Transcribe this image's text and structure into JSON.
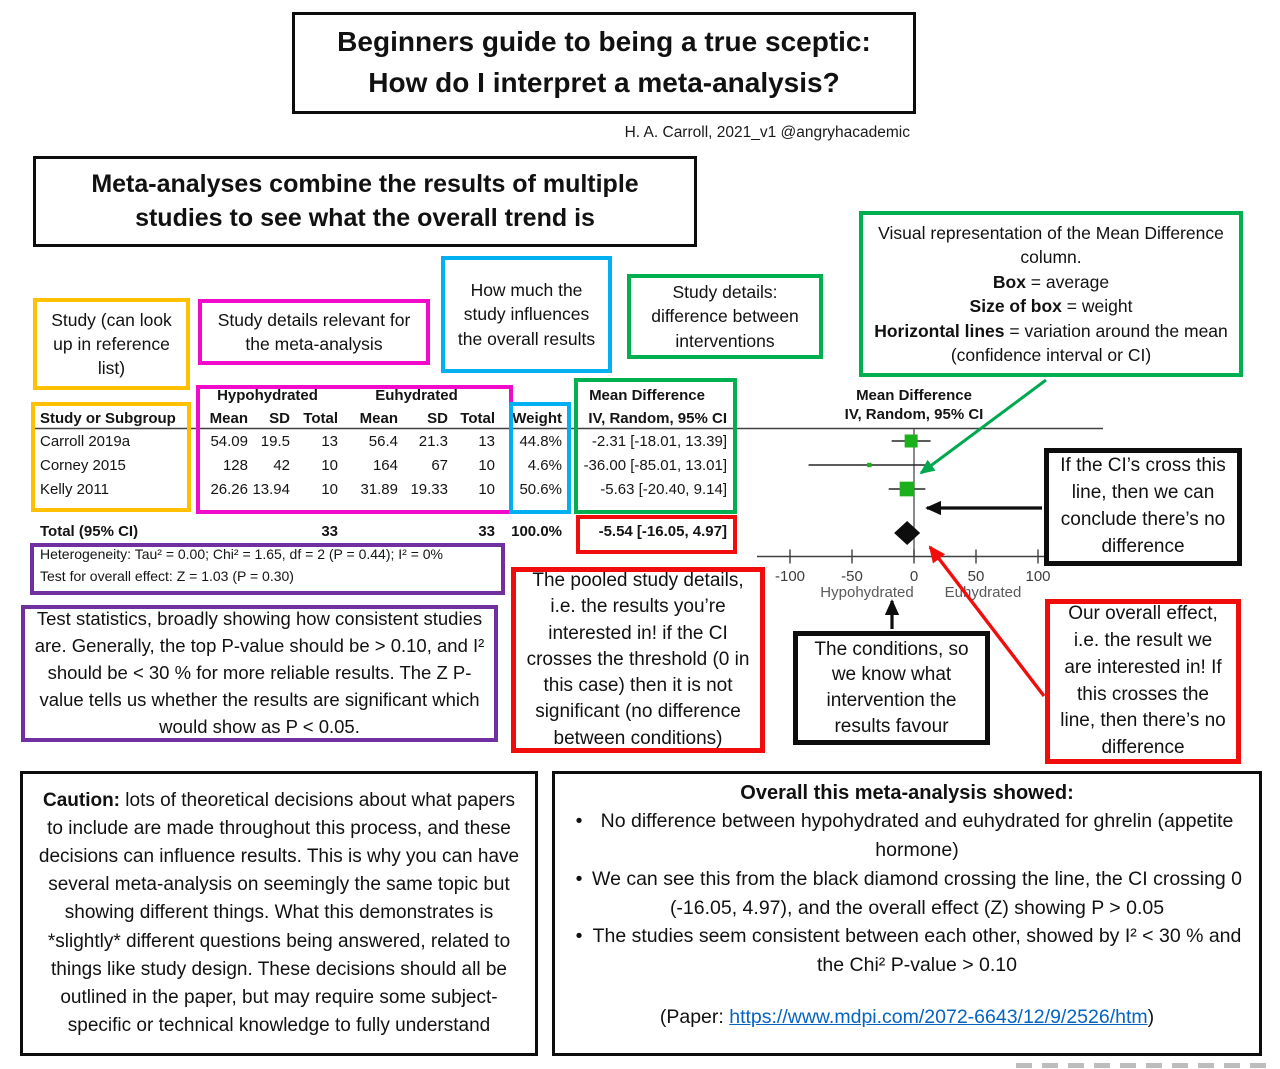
{
  "header": {
    "title_line1": "Beginners guide to being a true sceptic:",
    "title_line2": "How do I interpret a meta-analysis?",
    "attribution": "H. A. Carroll, 2021_v1  @angryhacademic",
    "intro": "Meta-analyses combine the results of multiple studies to see what the overall trend is"
  },
  "callouts": {
    "study": "Study (can look up in reference list)",
    "study_details": "Study details relevant for the meta-analysis",
    "weight": "How much the study influences the overall results",
    "mean_difference": "Study details: difference between interventions",
    "visual": {
      "line1": "Visual representation of the Mean Difference column.",
      "box_label": "Box",
      "box_value": " = average",
      "size_label": "Size of box",
      "size_value": " = weight",
      "lines_label": "Horizontal lines",
      "lines_value": " = variation around the mean (confidence interval or CI)"
    },
    "test_stats": "Test statistics, broadly showing how consistent studies are. Generally, the top P-value should be > 0.10, and I² should be < 30 % for more reliable results. The Z P-value tells us whether the results are significant which would show as P < 0.05.",
    "pooled": "The pooled study details, i.e. the results you’re interested in! if the CI crosses the threshold (0 in this case) then it is not significant (no difference between conditions)",
    "conditions": "The conditions, so we know what intervention the results favour",
    "ci_line": "If the CI’s cross this line, then we can conclude there’s no difference",
    "overall_effect": "Our overall effect, i.e. the result we are interested in! If this crosses the line, then there’s no difference"
  },
  "table": {
    "group1": "Hypohydrated",
    "group2": "Euhydrated",
    "col_study": "Study or Subgroup",
    "col_mean": "Mean",
    "col_sd": "SD",
    "col_total": "Total",
    "col_weight": "Weight",
    "col_md_line1": "Mean Difference",
    "col_md_line2": "IV, Random, 95% CI",
    "rows": [
      {
        "study": "Carroll 2019a",
        "mean1": "54.09",
        "sd1": "19.5",
        "total1": "13",
        "mean2": "56.4",
        "sd2": "21.3",
        "total2": "13",
        "weight": "44.8%",
        "md": "-2.31 [-18.01, 13.39]"
      },
      {
        "study": "Corney 2015",
        "mean1": "128",
        "sd1": "42",
        "total1": "10",
        "mean2": "164",
        "sd2": "67",
        "total2": "10",
        "weight": "4.6%",
        "md": "-36.00 [-85.01, 13.01]"
      },
      {
        "study": "Kelly 2011",
        "mean1": "26.26",
        "sd1": "13.94",
        "total1": "10",
        "mean2": "31.89",
        "sd2": "19.33",
        "total2": "10",
        "weight": "50.6%",
        "md": "-5.63 [-20.40, 9.14]"
      }
    ],
    "total": {
      "label": "Total (95% CI)",
      "total1": "33",
      "total2": "33",
      "weight": "100.0%",
      "md": "-5.54 [-16.05, 4.97]"
    },
    "heterogeneity": "Heterogeneity: Tau² = 0.00; Chi² = 1.65, df = 2 (P = 0.44); I² = 0%",
    "overall_test": "Test for overall effect: Z = 1.03 (P = 0.30)"
  },
  "chart_data": {
    "type": "forest",
    "title": "Mean Difference",
    "subtitle": "IV, Random, 95% CI",
    "xlim": [
      -100,
      100
    ],
    "ticks": [
      -100,
      -50,
      0,
      50,
      100
    ],
    "axis_label_left": "Hypohydrated",
    "axis_label_right": "Euhydrated",
    "studies": [
      {
        "name": "Carroll 2019a",
        "md": -2.31,
        "ci_low": -18.01,
        "ci_high": 13.39,
        "weight": 44.8
      },
      {
        "name": "Corney 2015",
        "md": -36.0,
        "ci_low": -85.01,
        "ci_high": 13.01,
        "weight": 4.6
      },
      {
        "name": "Kelly 2011",
        "md": -5.63,
        "ci_low": -20.4,
        "ci_high": 9.14,
        "weight": 50.6
      }
    ],
    "total": {
      "md": -5.54,
      "ci_low": -16.05,
      "ci_high": 4.97
    },
    "marker_color": "#1CB01C",
    "diamond_color": "#0d0d0d"
  },
  "caution": {
    "label": "Caution:",
    "text": " lots of theoretical decisions about what papers to include are made throughout this process, and these decisions can influence results. This is why you can have several meta-analysis on seemingly the same topic but showing different things. What this demonstrates is *slightly* different questions being answered, related to things like study design. These decisions should all be outlined in the paper, but may require some subject-specific or technical knowledge to fully understand"
  },
  "summary": {
    "heading": "Overall this meta-analysis showed:",
    "bullets": [
      "No difference between hypohydrated and euhydrated for ghrelin (appetite hormone)",
      "We can see this from the black diamond crossing the line, the CI crossing 0 (-16.05, 4.97), and the overall effect (Z) showing P > 0.05",
      "The studies seem consistent between each other, showed by I² < 30 % and the Chi² P-value > 0.10"
    ],
    "paper_prefix": "(Paper: ",
    "paper_link": "https://www.mdpi.com/2072-6643/12/9/2526/htm",
    "paper_suffix": ")"
  },
  "colors": {
    "yellow": "#FFC000",
    "magenta": "#F20ACB",
    "cyan": "#00B0F0",
    "green": "#00B050",
    "purple": "#7030A0",
    "red": "#F20D0D",
    "black": "#0d0d0d",
    "link": "#0563C1"
  }
}
